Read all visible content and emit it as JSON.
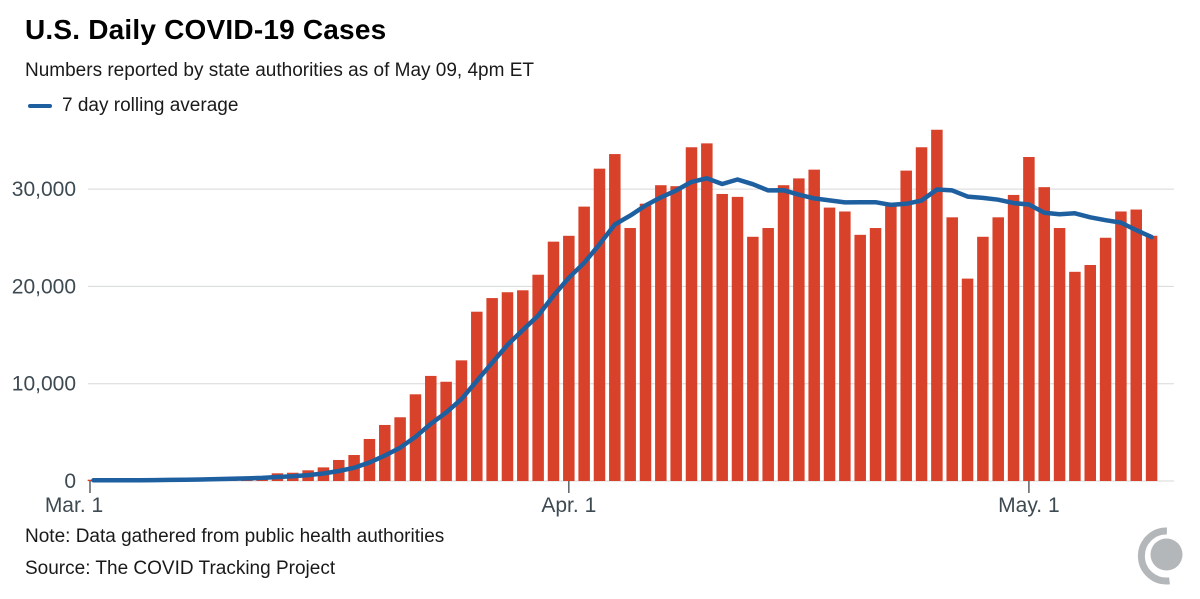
{
  "page": {
    "title": "U.S. Daily COVID-19 Cases",
    "subtitle": "Numbers reported by state authorities as of May 09, 4pm ET",
    "note": "Note: Data gathered from public health authorities",
    "source": "Source: The COVID Tracking Project"
  },
  "legend": {
    "items": [
      {
        "label": "7 day rolling average",
        "swatch": "line-dash",
        "color": "#1e5fa0"
      }
    ]
  },
  "colors": {
    "bar": "#d8422b",
    "line": "#1e5fa0",
    "gridline": "#d6d9da",
    "axis_text": "#3e4a52",
    "tick": "#5c6166",
    "logo_gray": "#b4b7ba"
  },
  "chart_data": {
    "type": "bar",
    "title": "U.S. Daily COVID-19 Cases",
    "subtitle": "Numbers reported by state authorities as of May 09, 4pm ET",
    "grid": "horizontal",
    "x": {
      "start": "Mar 1",
      "end": "May 9",
      "cadence": "daily",
      "num_days": 70,
      "tick_labels": [
        "Mar. 1",
        "Apr. 1",
        "May. 1"
      ],
      "tick_day_indices": [
        0,
        31,
        61
      ]
    },
    "y": {
      "tick_values": [
        0,
        10000,
        20000,
        30000
      ],
      "tick_labels": [
        "0",
        "10,000",
        "20,000",
        "30,000"
      ],
      "ylim": [
        0,
        36500
      ]
    },
    "series": [
      {
        "name": "Daily cases",
        "type": "bar",
        "color": "#d8422b",
        "values": [
          70,
          70,
          85,
          120,
          135,
          170,
          240,
          275,
          310,
          340,
          380,
          510,
          790,
          850,
          1100,
          1400,
          2160,
          2670,
          4320,
          5760,
          6550,
          8910,
          10800,
          10200,
          12400,
          17400,
          18800,
          19400,
          19600,
          21200,
          24600,
          25200,
          28200,
          32100,
          33600,
          26000,
          28500,
          30400,
          30300,
          34300,
          34700,
          29500,
          29200,
          25100,
          26000,
          30400,
          31100,
          32000,
          28100,
          27700,
          25300,
          26000,
          28400,
          31900,
          34300,
          36100,
          27100,
          20800,
          25100,
          27100,
          29400,
          33300,
          30200,
          26000,
          21500,
          22200,
          25000,
          27700,
          27900,
          25200
        ]
      },
      {
        "name": "7 day rolling average",
        "type": "line",
        "color": "#1e5fa0",
        "derived_from": "Daily cases",
        "rolling_window": 7
      }
    ]
  }
}
